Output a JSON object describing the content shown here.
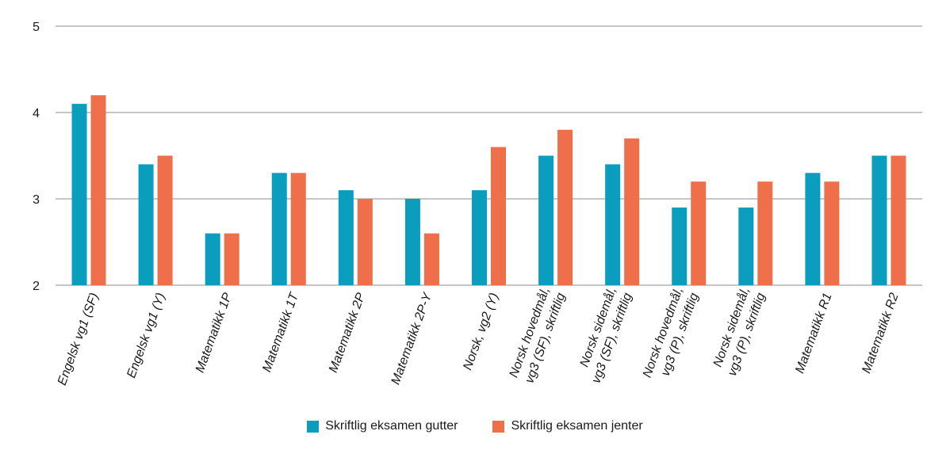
{
  "chart_data": {
    "type": "bar",
    "categories": [
      [
        "Engelsk vg1 (SF)"
      ],
      [
        "Engelsk vg1 (Y)"
      ],
      [
        "Matematikk 1P"
      ],
      [
        "Matematikk 1T"
      ],
      [
        "Matematikk 2P"
      ],
      [
        "Matematikk 2P-Y"
      ],
      [
        "Norsk, vg2 (Y)"
      ],
      [
        "Norsk hovedmål,",
        "vg3 (SF), skriftlig"
      ],
      [
        "Norsk sidemål,",
        "vg3 (SF), skriftlig"
      ],
      [
        "Norsk hovedmål,",
        "vg3 (P), skriftlig"
      ],
      [
        "Norsk sidemål,",
        "vg3 (P), skriftlig"
      ],
      [
        "Matematikk R1"
      ],
      [
        "Matematikk R2"
      ]
    ],
    "series": [
      {
        "name": "Skriftlig eksamen gutter",
        "color": "#0a9dbd",
        "values": [
          4.1,
          3.4,
          2.6,
          3.3,
          3.1,
          3.0,
          3.1,
          3.5,
          3.4,
          2.9,
          2.9,
          3.3,
          3.5
        ]
      },
      {
        "name": "Skriftlig eksamen jenter",
        "color": "#ee6f4a",
        "values": [
          4.2,
          3.5,
          2.6,
          3.3,
          3.0,
          2.6,
          3.6,
          3.8,
          3.7,
          3.2,
          3.2,
          3.2,
          3.5
        ]
      }
    ],
    "title": "",
    "xlabel": "",
    "ylabel": "",
    "ylim": [
      2,
      5
    ],
    "yticks": [
      "2",
      "3",
      "4",
      "5"
    ],
    "grid": true,
    "legend_position": "bottom-center"
  }
}
